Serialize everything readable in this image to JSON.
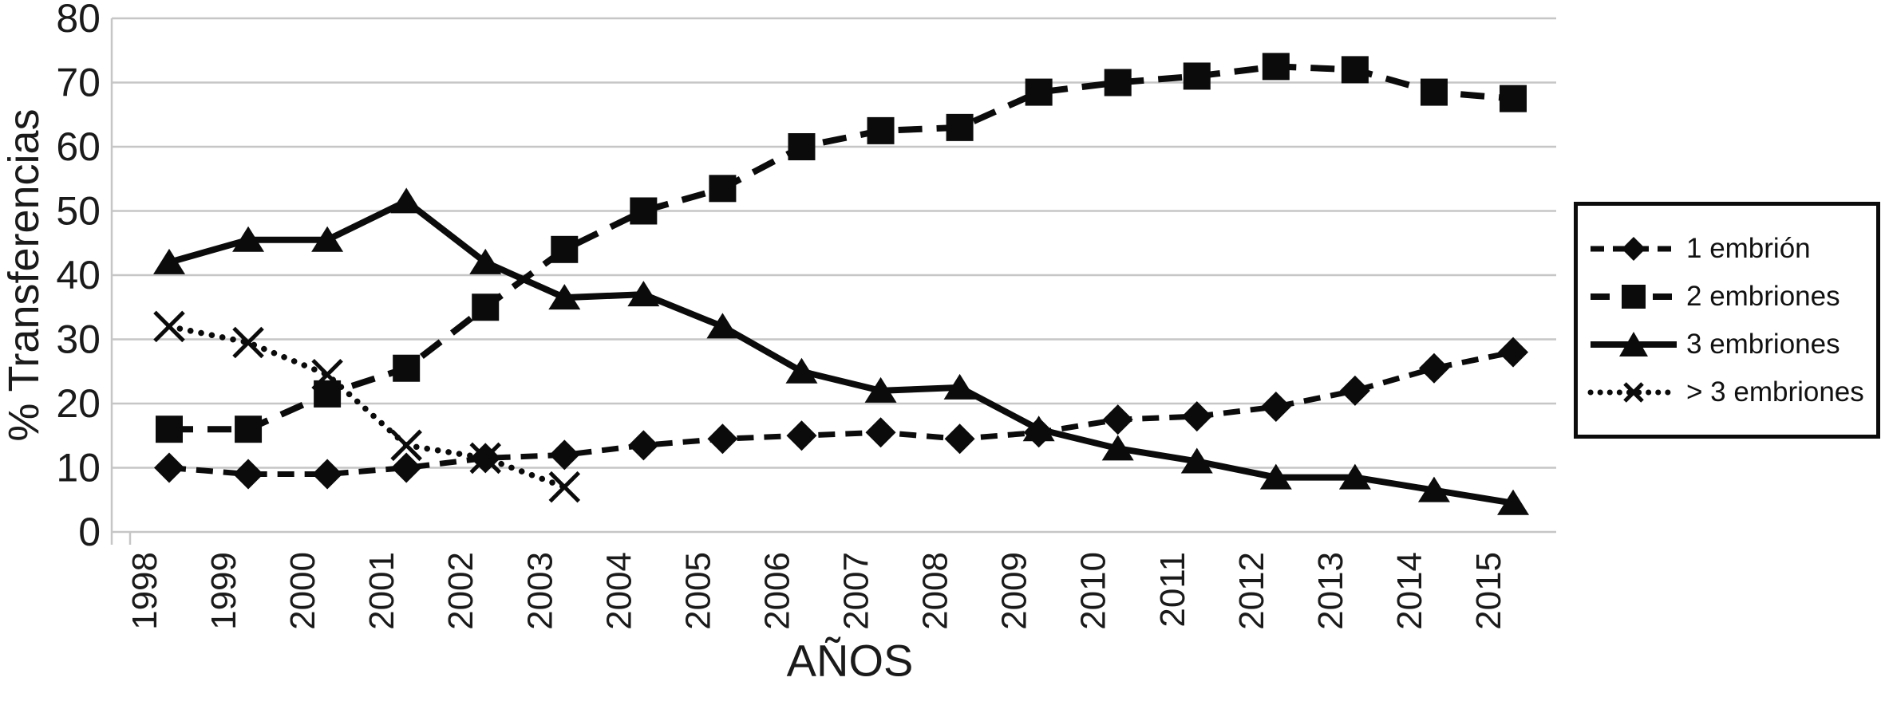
{
  "figure": {
    "ylabel": "% Transferencias",
    "xlabel": "AÑOS"
  },
  "chart_data": {
    "type": "line",
    "title": "",
    "xlabel": "AÑOS",
    "ylabel": "% Transferencias",
    "ylim": [
      0,
      80
    ],
    "ytick_step": 10,
    "yticks": [
      0,
      10,
      20,
      30,
      40,
      50,
      60,
      70,
      80
    ],
    "grid": true,
    "grid_color": "#c6c6c6",
    "color": "#0b0b0b",
    "legend_position": "right-outside",
    "categories": [
      "1998",
      "1999",
      "2000",
      "2001",
      "2002",
      "2003",
      "2004",
      "2005",
      "2006",
      "2007",
      "2008",
      "2009",
      "2010",
      "2011",
      "2012",
      "2013",
      "2014",
      "2015"
    ],
    "series": [
      {
        "name": "1 embrión",
        "marker": "diamond",
        "line": "dashed",
        "values": [
          10,
          9,
          9,
          10,
          11.5,
          12,
          13.5,
          14.5,
          15,
          15.5,
          14.5,
          15.5,
          17.5,
          18,
          19.5,
          22,
          25.5,
          28
        ]
      },
      {
        "name": "2 embriones",
        "marker": "square",
        "line": "dashed-long",
        "values": [
          16,
          16,
          21.5,
          25.5,
          35,
          44,
          50,
          53.5,
          60,
          62.5,
          63,
          68.5,
          70,
          71,
          72.5,
          72,
          68.5,
          67.5
        ]
      },
      {
        "name": "3 embriones",
        "marker": "triangle",
        "line": "solid",
        "values": [
          42,
          45.5,
          45.5,
          51.5,
          42,
          36.5,
          37,
          32,
          25,
          22,
          22.5,
          16,
          13,
          11,
          8.5,
          8.5,
          6.5,
          4.5
        ]
      },
      {
        "name": "> 3 embriones",
        "marker": "x",
        "line": "dotted",
        "values": [
          32,
          29.5,
          24.5,
          13.5,
          11.5,
          7,
          null,
          null,
          null,
          null,
          null,
          null,
          null,
          null,
          null,
          null,
          null,
          null
        ]
      }
    ]
  }
}
